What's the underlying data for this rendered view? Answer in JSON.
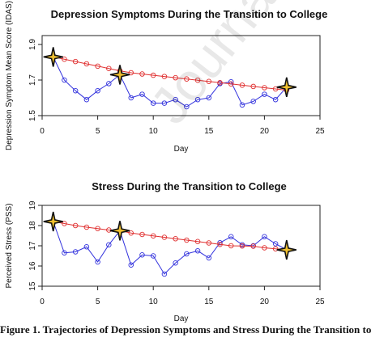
{
  "chart_data": [
    {
      "type": "line",
      "title": "Depression Symptoms During the Transition to College",
      "xlabel": "Day",
      "ylabel": "Depression Symptom Mean Score (IDAS)",
      "xlim": [
        0,
        25
      ],
      "ylim": [
        1.5,
        1.95
      ],
      "x_ticks": [
        0,
        5,
        10,
        15,
        20,
        25
      ],
      "y_ticks": [
        1.5,
        1.7,
        1.9
      ],
      "y_tick_labels": [
        "1.5",
        "1.7",
        "1.9"
      ],
      "colors": {
        "observed": "#3333dd",
        "trend": "#e03030",
        "star": "#f0c030"
      },
      "series": [
        {
          "key": "observed",
          "x": [
            1,
            2,
            3,
            4,
            5,
            6,
            7,
            8,
            9,
            10,
            11,
            12,
            13,
            14,
            15,
            16,
            17,
            18,
            19,
            20,
            21,
            22
          ],
          "values": [
            1.83,
            1.7,
            1.64,
            1.59,
            1.64,
            1.68,
            1.73,
            1.6,
            1.62,
            1.57,
            1.57,
            1.59,
            1.55,
            1.59,
            1.6,
            1.68,
            1.69,
            1.56,
            1.58,
            1.62,
            1.59,
            1.66
          ]
        },
        {
          "key": "trend",
          "x": [
            1,
            2,
            3,
            4,
            5,
            6,
            7,
            8,
            9,
            10,
            11,
            12,
            13,
            14,
            15,
            16,
            17,
            18,
            19,
            20,
            21,
            22
          ],
          "values": [
            1.83,
            1.817,
            1.804,
            1.791,
            1.778,
            1.765,
            1.752,
            1.741,
            1.734,
            1.727,
            1.72,
            1.713,
            1.706,
            1.699,
            1.692,
            1.685,
            1.678,
            1.671,
            1.664,
            1.657,
            1.65,
            1.643
          ]
        }
      ],
      "stars": {
        "x": [
          1,
          7,
          22
        ],
        "values": [
          1.83,
          1.73,
          1.66
        ]
      }
    },
    {
      "type": "line",
      "title": "Stress During the Transition to College",
      "xlabel": "Day",
      "ylabel": "Perceived Stress (PSS)",
      "xlim": [
        0,
        25
      ],
      "ylim": [
        15,
        19
      ],
      "x_ticks": [
        0,
        5,
        10,
        15,
        20,
        25
      ],
      "y_ticks": [
        15,
        16,
        17,
        18,
        19
      ],
      "y_tick_labels": [
        "15",
        "16",
        "17",
        "18",
        "19"
      ],
      "colors": {
        "observed": "#3333dd",
        "trend": "#e03030",
        "star": "#f0c030"
      },
      "series": [
        {
          "key": "observed",
          "x": [
            1,
            2,
            3,
            4,
            5,
            6,
            7,
            8,
            9,
            10,
            11,
            12,
            13,
            14,
            15,
            16,
            17,
            18,
            19,
            20,
            21,
            22
          ],
          "values": [
            18.2,
            16.65,
            16.7,
            16.95,
            16.2,
            17.05,
            17.75,
            16.05,
            16.55,
            16.5,
            15.6,
            16.15,
            16.6,
            16.75,
            16.4,
            17.15,
            17.45,
            17.05,
            17.0,
            17.45,
            17.1,
            16.8
          ]
        },
        {
          "key": "trend",
          "x": [
            1,
            2,
            3,
            4,
            5,
            6,
            7,
            8,
            9,
            10,
            11,
            12,
            13,
            14,
            15,
            16,
            17,
            18,
            19,
            20,
            21,
            22
          ],
          "values": [
            18.2,
            18.1,
            18.0,
            17.92,
            17.85,
            17.78,
            17.75,
            17.63,
            17.56,
            17.49,
            17.42,
            17.35,
            17.28,
            17.21,
            17.14,
            17.07,
            17.0,
            16.99,
            16.98,
            16.9,
            16.85,
            16.8
          ]
        }
      ],
      "stars": {
        "x": [
          1,
          7,
          22
        ],
        "values": [
          18.2,
          17.75,
          16.8
        ]
      }
    }
  ],
  "caption": "Figure 1. Trajectories of Depression Symptoms and Stress During the Transition to",
  "watermark": "Journal Pre-proofs"
}
